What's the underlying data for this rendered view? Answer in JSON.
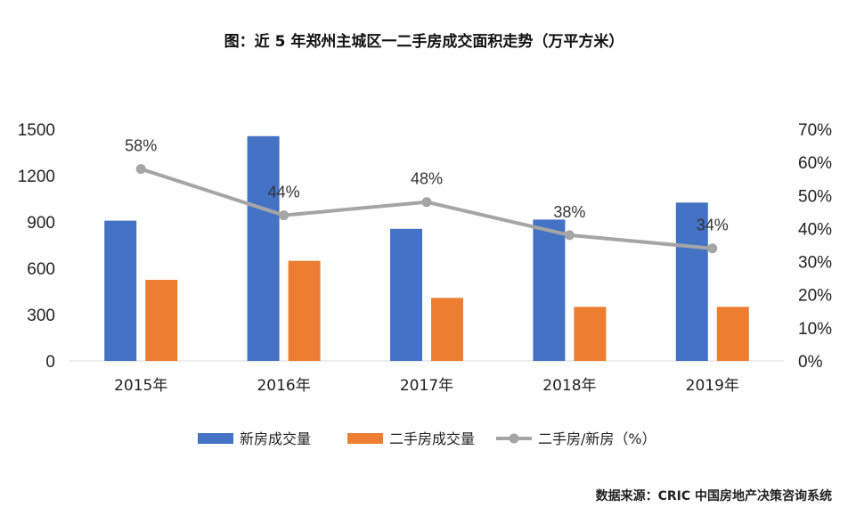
{
  "chart_data": {
    "type": "bar",
    "title": "图：近 5 年郑州主城区一二手房成交面积走势（万平方米）",
    "categories": [
      "2015年",
      "2016年",
      "2017年",
      "2018年",
      "2019年"
    ],
    "series": [
      {
        "name": "新房成交量",
        "type": "bar",
        "axis": "left",
        "color": "#4472C4",
        "values": [
          908,
          1455,
          855,
          915,
          1025
        ]
      },
      {
        "name": "二手房成交量",
        "type": "bar",
        "axis": "left",
        "color": "#ED7D31",
        "values": [
          525,
          648,
          408,
          350,
          350
        ]
      },
      {
        "name": "二手房/新房（%）",
        "type": "line",
        "axis": "right",
        "color": "#A5A5A5",
        "values": [
          58,
          44,
          48,
          38,
          34
        ],
        "labels": [
          "58%",
          "44%",
          "48%",
          "38%",
          "34%"
        ]
      }
    ],
    "y_left": {
      "min": 0,
      "max": 1500,
      "ticks": [
        "0",
        "300",
        "600",
        "900",
        "1200",
        "1500"
      ],
      "tick_values": [
        0,
        300,
        600,
        900,
        1200,
        1500
      ]
    },
    "y_right": {
      "min": 0,
      "max": 70,
      "ticks": [
        "0%",
        "10%",
        "20%",
        "30%",
        "40%",
        "50%",
        "60%",
        "70%"
      ],
      "tick_values": [
        0,
        10,
        20,
        30,
        40,
        50,
        60,
        70
      ]
    },
    "grid": false,
    "legend_position": "bottom-center"
  },
  "source": "数据来源：CRIC 中国房地产决策咨询系统"
}
